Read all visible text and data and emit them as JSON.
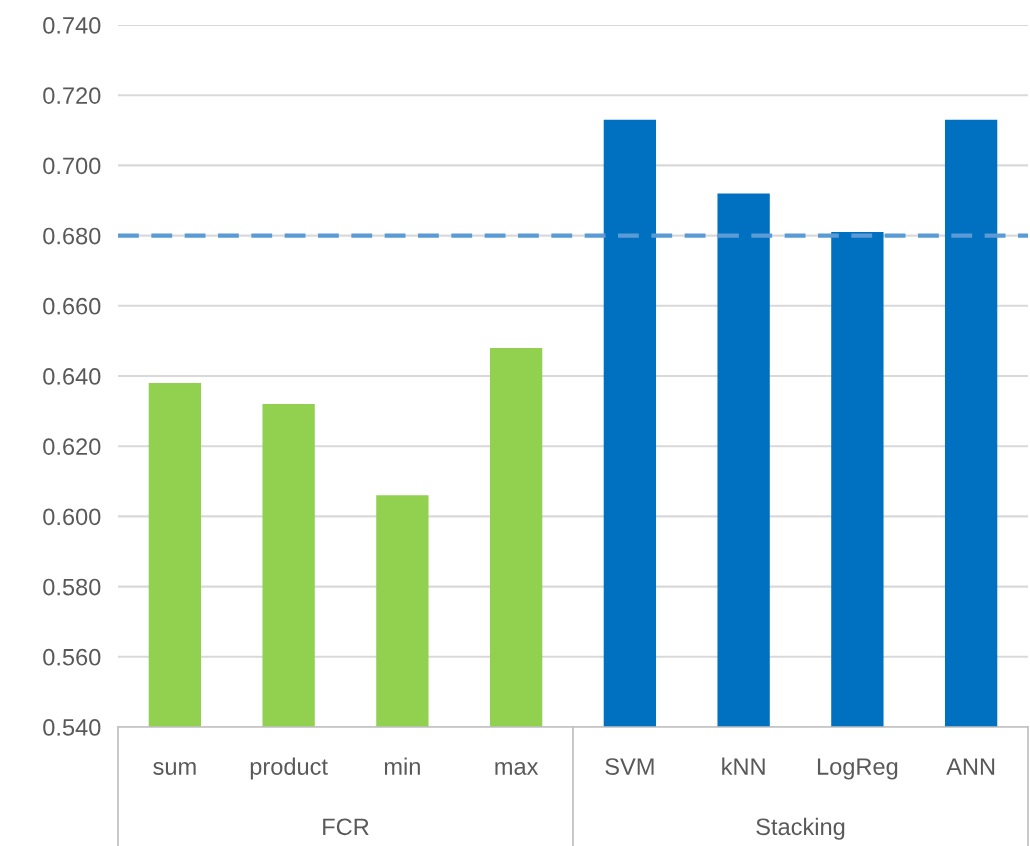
{
  "chart_data": {
    "type": "bar",
    "categories": [
      "sum",
      "product",
      "min",
      "max",
      "SVM",
      "kNN",
      "LogReg",
      "ANN"
    ],
    "values": [
      0.638,
      0.632,
      0.606,
      0.648,
      0.713,
      0.692,
      0.681,
      0.713
    ],
    "colors": [
      "#92d050",
      "#92d050",
      "#92d050",
      "#92d050",
      "#0070c0",
      "#0070c0",
      "#0070c0",
      "#0070c0"
    ],
    "ylim": [
      0.54,
      0.74
    ],
    "yticks": [
      {
        "value": 0.54,
        "label": "0.540"
      },
      {
        "value": 0.56,
        "label": "0.560"
      },
      {
        "value": 0.58,
        "label": "0.580"
      },
      {
        "value": 0.6,
        "label": "0.600"
      },
      {
        "value": 0.62,
        "label": "0.620"
      },
      {
        "value": 0.64,
        "label": "0.640"
      },
      {
        "value": 0.66,
        "label": "0.660"
      },
      {
        "value": 0.68,
        "label": "0.680"
      },
      {
        "value": 0.7,
        "label": "0.700"
      },
      {
        "value": 0.72,
        "label": "0.720"
      },
      {
        "value": 0.74,
        "label": "0.740"
      }
    ],
    "grid": "y",
    "ref_lines": [
      {
        "axis": "y",
        "value": 0.68,
        "color": "#5b9bd5",
        "line_style": "dashed"
      }
    ],
    "annotations": [
      "FCR",
      "Stacking"
    ]
  }
}
